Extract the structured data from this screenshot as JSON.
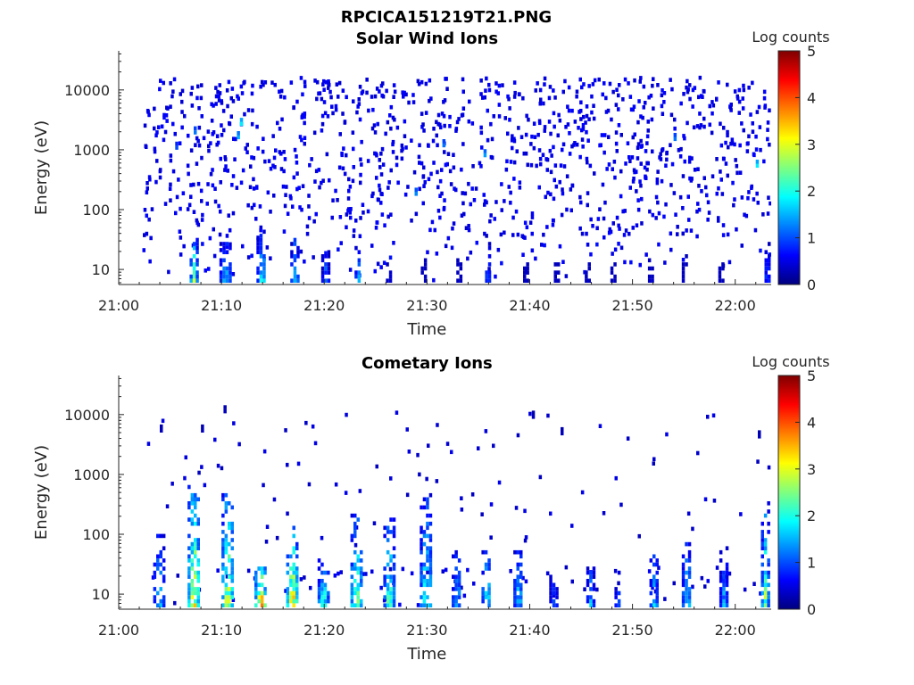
{
  "figure": {
    "title": "RPCICA151219T21.PNG"
  },
  "colormap": [
    "#00007f",
    "#0000ff",
    "#007fff",
    "#00ffff",
    "#7fff7f",
    "#ffff00",
    "#ff7f00",
    "#ff0000",
    "#7f0000"
  ],
  "chart_data": [
    {
      "type": "heatmap",
      "title": "Solar Wind Ions",
      "xlabel": "Time",
      "ylabel": "Energy (eV)",
      "x_ticks": [
        "21:00",
        "21:10",
        "21:20",
        "21:30",
        "21:40",
        "21:50",
        "22:00"
      ],
      "x_tick_minutes": [
        0,
        10,
        20,
        30,
        40,
        50,
        60
      ],
      "xlim_minutes": [
        0,
        63.5
      ],
      "x_start_time": "21:00",
      "yscale": "log",
      "y_ticks": [
        "10",
        "100",
        "1000",
        "10000"
      ],
      "y_tick_values": [
        10,
        100,
        1000,
        10000
      ],
      "ylim": [
        5.6,
        45000
      ],
      "grid": false,
      "colorbar": {
        "label": "Log counts",
        "ticks": [
          "0",
          "1",
          "2",
          "3",
          "4",
          "5"
        ],
        "range": [
          0,
          5
        ]
      },
      "data_extent_minutes": [
        2.3,
        63.3
      ],
      "dense_columns": [
        {
          "t": 7.2,
          "top": 35,
          "peak": 2.5,
          "w": 0.6
        },
        {
          "t": 10.3,
          "top": 35,
          "peak": 1.6,
          "w": 1.0
        },
        {
          "t": 13.8,
          "top": 40,
          "peak": 2.0,
          "w": 0.8
        },
        {
          "t": 17.0,
          "top": 35,
          "peak": 1.9,
          "w": 0.6
        },
        {
          "t": 20.0,
          "top": 28,
          "peak": 1.2,
          "w": 0.6
        },
        {
          "t": 23.2,
          "top": 28,
          "peak": 1.6,
          "w": 0.5
        },
        {
          "t": 26.2,
          "top": 14,
          "peak": 0.6,
          "w": 0.4
        },
        {
          "t": 29.6,
          "top": 14,
          "peak": 0.6,
          "w": 0.4
        },
        {
          "t": 33.0,
          "top": 14,
          "peak": 0.4,
          "w": 0.3
        },
        {
          "t": 35.8,
          "top": 40,
          "peak": 1.5,
          "w": 0.3
        },
        {
          "t": 39.5,
          "top": 12,
          "peak": 0.4,
          "w": 0.3
        },
        {
          "t": 42.5,
          "top": 12,
          "peak": 0.4,
          "w": 0.3
        },
        {
          "t": 45.5,
          "top": 12,
          "peak": 0.4,
          "w": 0.3
        },
        {
          "t": 48.0,
          "top": 12,
          "peak": 0.4,
          "w": 0.3
        },
        {
          "t": 51.7,
          "top": 14,
          "peak": 0.5,
          "w": 0.4
        },
        {
          "t": 55.0,
          "top": 16,
          "peak": 0.6,
          "w": 0.4
        },
        {
          "t": 58.5,
          "top": 12,
          "peak": 0.4,
          "w": 0.3
        },
        {
          "t": 63.0,
          "top": 28,
          "peak": 1.5,
          "w": 0.3
        }
      ],
      "scatter_energy_range": [
        30,
        15000
      ],
      "scatter_density": 1100,
      "scatter_level": 0.4,
      "hotspots": [
        {
          "t": 11.8,
          "e": 2500,
          "v": 1.8
        },
        {
          "t": 11.5,
          "e": 1500,
          "v": 1.5
        },
        {
          "t": 7.3,
          "e": 1800,
          "v": 1.2
        },
        {
          "t": 35.5,
          "e": 750,
          "v": 1.4
        },
        {
          "t": 62.0,
          "e": 500,
          "v": 1.8
        },
        {
          "t": 31.5,
          "e": 1100,
          "v": 1.2
        },
        {
          "t": 54.0,
          "e": 1400,
          "v": 1.2
        },
        {
          "t": 5.5,
          "e": 1000,
          "v": 1.0
        },
        {
          "t": 28.8,
          "e": 170,
          "v": 1.3
        }
      ]
    },
    {
      "type": "heatmap",
      "title": "Cometary Ions",
      "xlabel": "Time",
      "ylabel": "Energy (eV)",
      "x_ticks": [
        "21:00",
        "21:10",
        "21:20",
        "21:30",
        "21:40",
        "21:50",
        "22:00"
      ],
      "x_tick_minutes": [
        0,
        10,
        20,
        30,
        40,
        50,
        60
      ],
      "xlim_minutes": [
        0,
        63.5
      ],
      "x_start_time": "21:00",
      "yscale": "log",
      "y_ticks": [
        "10",
        "100",
        "1000",
        "10000"
      ],
      "y_tick_values": [
        10,
        100,
        1000,
        10000
      ],
      "ylim": [
        5.6,
        45000
      ],
      "grid": false,
      "colorbar": {
        "label": "Log counts",
        "ticks": [
          "0",
          "1",
          "2",
          "3",
          "4",
          "5"
        ],
        "range": [
          0,
          5
        ]
      },
      "data_extent_minutes": [
        2.3,
        63.3
      ],
      "dense_columns": [
        {
          "t": 3.8,
          "top": 100,
          "peak": 1.9,
          "w": 0.9
        },
        {
          "t": 7.2,
          "top": 900,
          "peak": 3.4,
          "w": 1.0
        },
        {
          "t": 10.5,
          "top": 700,
          "peak": 3.2,
          "w": 1.0
        },
        {
          "t": 13.7,
          "top": 45,
          "peak": 3.6,
          "w": 1.0
        },
        {
          "t": 16.8,
          "top": 120,
          "peak": 3.5,
          "w": 1.0
        },
        {
          "t": 19.8,
          "top": 40,
          "peak": 2.4,
          "w": 0.9
        },
        {
          "t": 23.0,
          "top": 200,
          "peak": 2.9,
          "w": 0.9
        },
        {
          "t": 26.2,
          "top": 250,
          "peak": 2.5,
          "w": 0.9
        },
        {
          "t": 29.8,
          "top": 450,
          "peak": 2.3,
          "w": 1.0
        },
        {
          "t": 32.8,
          "top": 60,
          "peak": 1.7,
          "w": 0.8
        },
        {
          "t": 35.7,
          "top": 60,
          "peak": 2.2,
          "w": 0.8
        },
        {
          "t": 38.8,
          "top": 80,
          "peak": 1.8,
          "w": 0.8
        },
        {
          "t": 42.2,
          "top": 28,
          "peak": 1.3,
          "w": 0.6
        },
        {
          "t": 45.8,
          "top": 40,
          "peak": 1.5,
          "w": 0.6
        },
        {
          "t": 48.5,
          "top": 25,
          "peak": 1.2,
          "w": 0.5
        },
        {
          "t": 52.0,
          "top": 60,
          "peak": 1.8,
          "w": 0.7
        },
        {
          "t": 55.2,
          "top": 80,
          "peak": 2.0,
          "w": 0.8
        },
        {
          "t": 58.8,
          "top": 60,
          "peak": 1.6,
          "w": 0.7
        },
        {
          "t": 62.8,
          "top": 350,
          "peak": 2.6,
          "w": 0.6
        }
      ],
      "scatter_energy_range": [
        60,
        11000
      ],
      "scatter_density": 90,
      "scatter_level": 0.3,
      "hotspots": [
        {
          "t": 10.2,
          "e": 10500,
          "v": 0.3
        },
        {
          "t": 8.0,
          "e": 5000,
          "v": 0.3
        },
        {
          "t": 4.0,
          "e": 5000,
          "v": 0.3
        },
        {
          "t": 40.2,
          "e": 8500,
          "v": 0.3
        },
        {
          "t": 43.0,
          "e": 4500,
          "v": 0.3
        },
        {
          "t": 62.2,
          "e": 4000,
          "v": 0.3
        }
      ]
    }
  ]
}
